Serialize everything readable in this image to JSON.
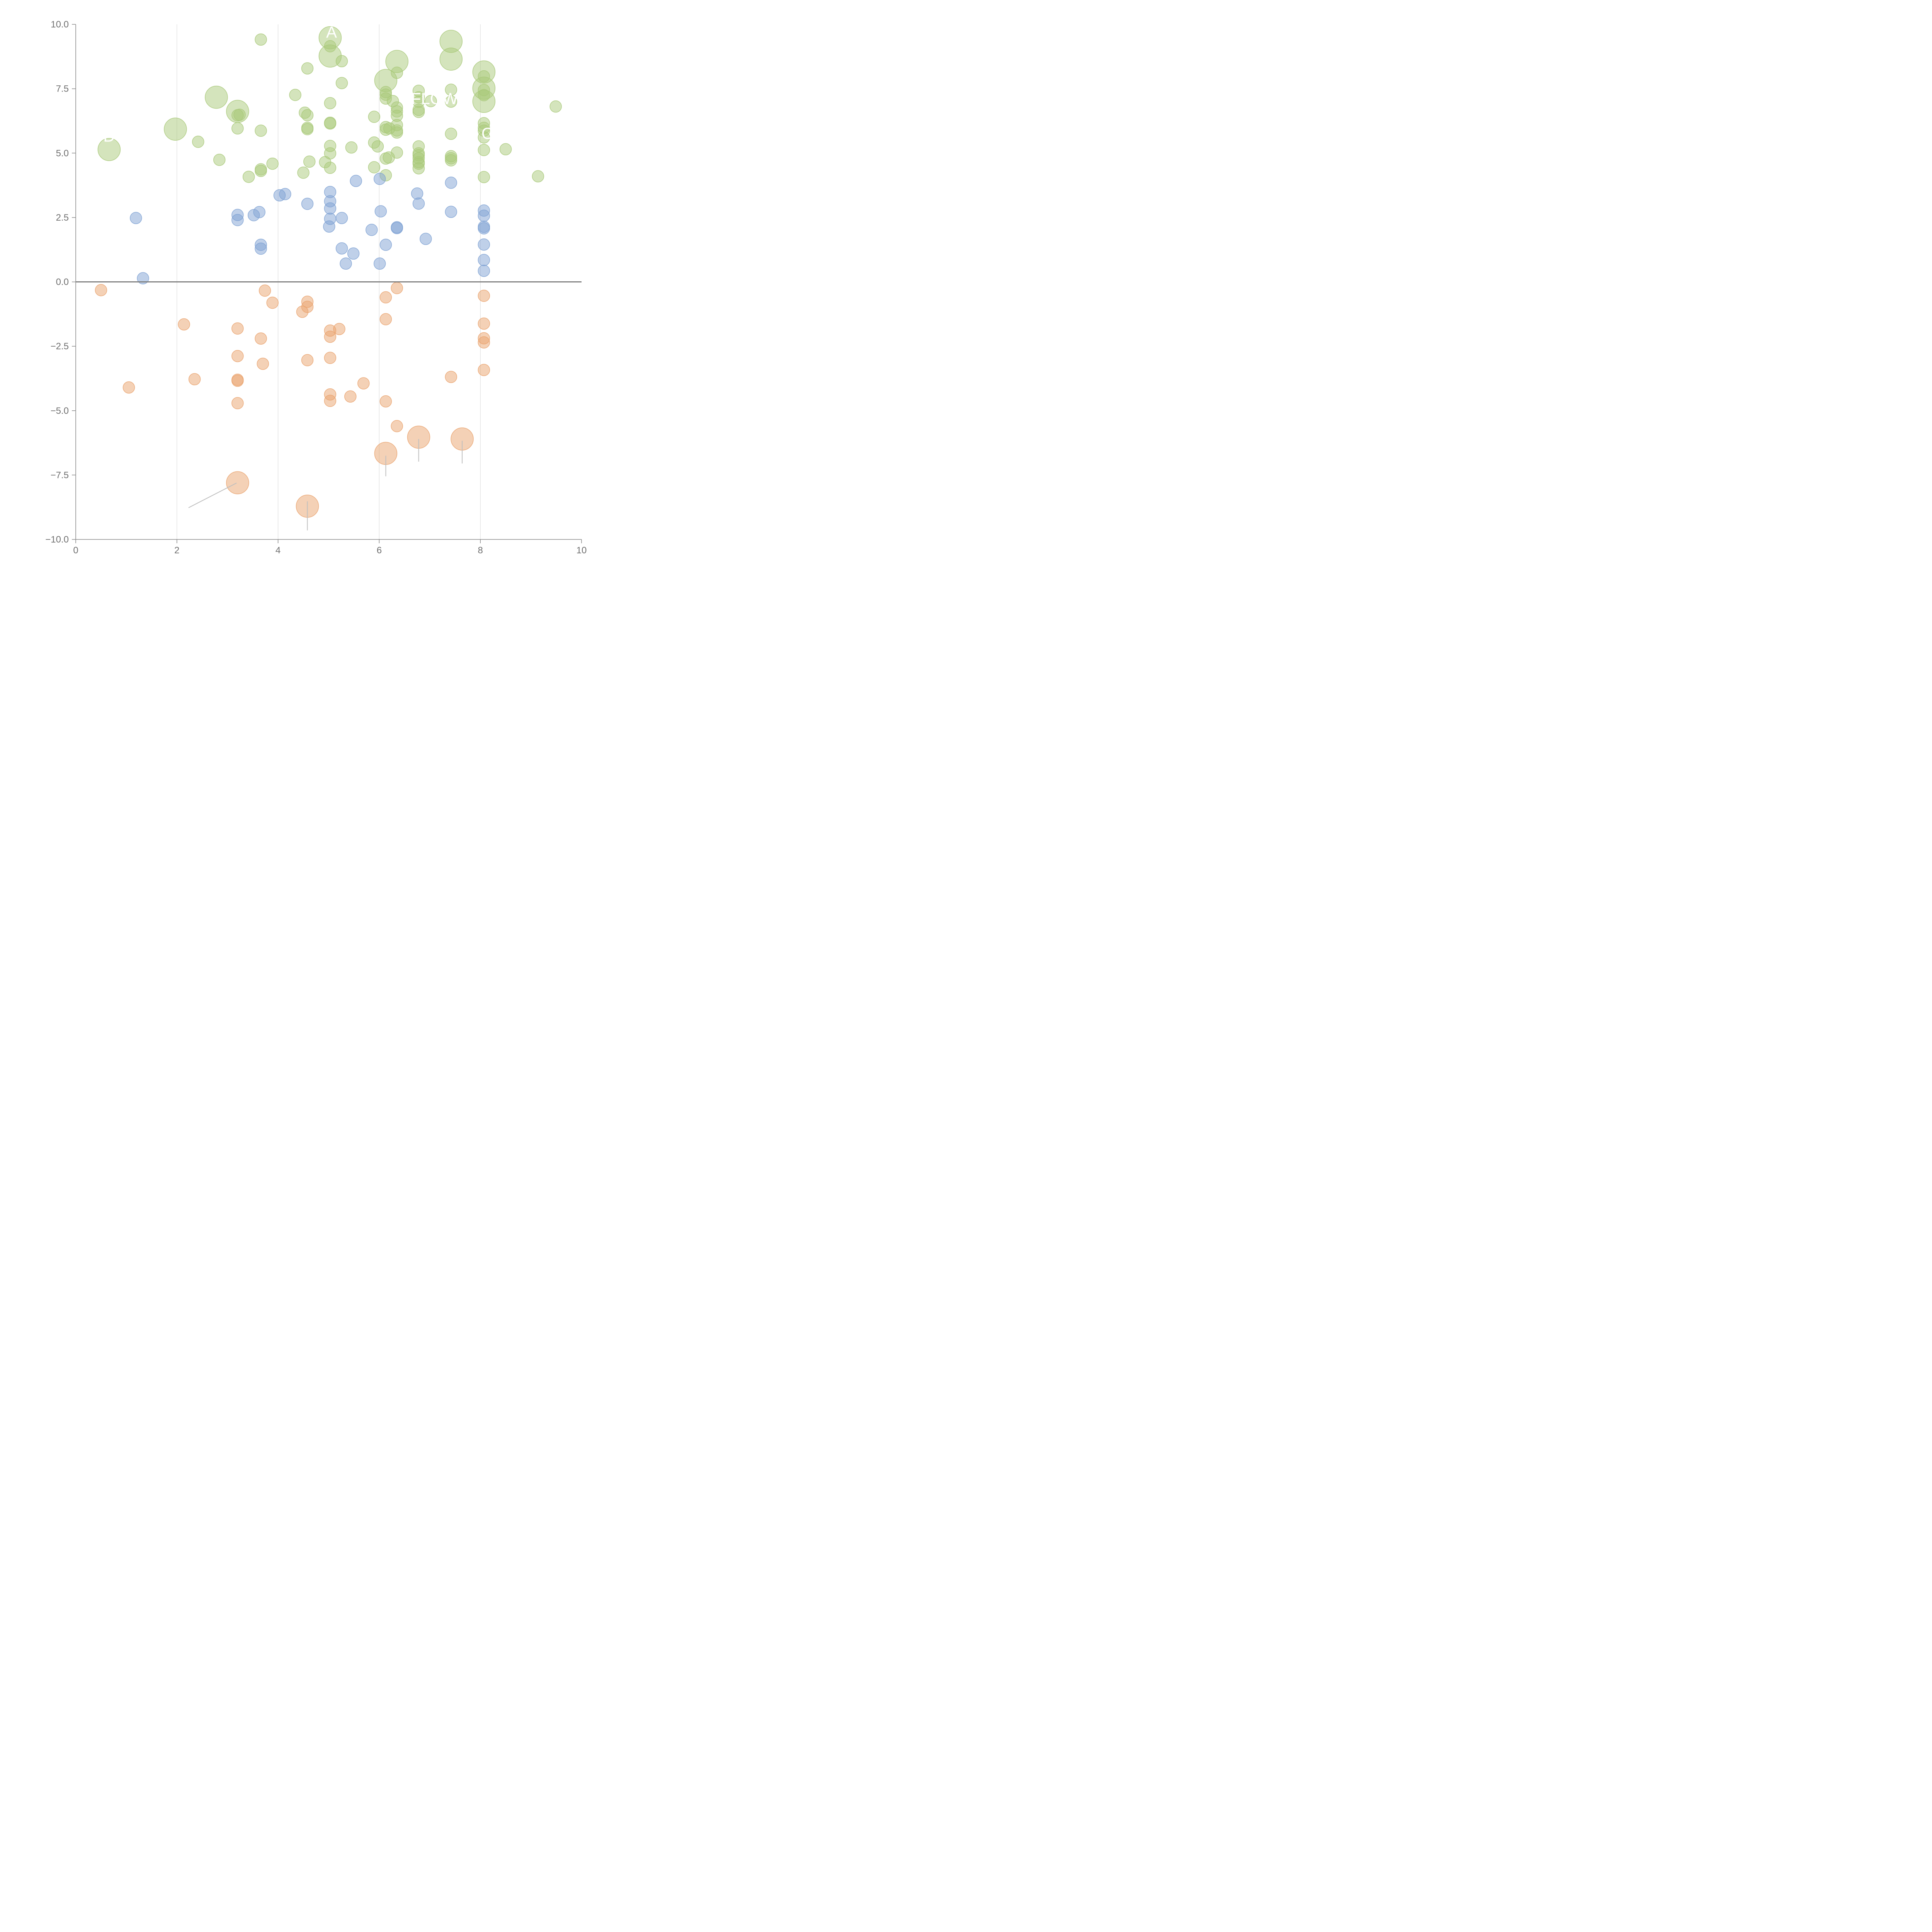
{
  "chart_data": {
    "type": "scatter",
    "title": "",
    "xlabel": "",
    "ylabel": "",
    "xlim": [
      0,
      10
    ],
    "ylim": [
      -10,
      10
    ],
    "x_ticks": [
      0,
      2,
      4,
      6,
      8,
      10
    ],
    "x_tick_labels": [
      "0",
      "2",
      "4",
      "6",
      "8",
      "10"
    ],
    "y_ticks": [
      -10,
      -7.5,
      -5,
      -2.5,
      0,
      2.5,
      5,
      7.5,
      10
    ],
    "y_tick_labels": [
      "−10.0",
      "−7.5",
      "−5.0",
      "−2.5",
      "0.0",
      "2.5",
      "5.0",
      "7.5",
      "10.0"
    ],
    "vertical_gridlines_at": [
      2,
      4,
      6,
      8
    ],
    "zero_line": 0,
    "colors": {
      "green": "#a9c97a",
      "blue": "#7fa2d3",
      "orange": "#eaa36e",
      "grid": "#dddddd",
      "axis": "#888888",
      "zero": "#808080",
      "leader": "#bfbfbf"
    },
    "series": [
      {
        "name": "green",
        "color": "#a9c97a",
        "points": [
          [
            3.66,
            9.41,
            1
          ],
          [
            5.03,
            9.48,
            2
          ],
          [
            5.03,
            9.15,
            1
          ],
          [
            5.03,
            8.77,
            2
          ],
          [
            5.26,
            8.57,
            1
          ],
          [
            4.58,
            8.29,
            1
          ],
          [
            7.42,
            9.34,
            2
          ],
          [
            7.42,
            8.65,
            2
          ],
          [
            6.35,
            8.56,
            2
          ],
          [
            6.35,
            8.12,
            1
          ],
          [
            6.13,
            7.82,
            2
          ],
          [
            8.07,
            8.15,
            2
          ],
          [
            8.07,
            7.98,
            1
          ],
          [
            8.07,
            7.52,
            2
          ],
          [
            8.07,
            7.01,
            2
          ],
          [
            8.07,
            7.25,
            1
          ],
          [
            8.07,
            7.45,
            1
          ],
          [
            5.26,
            7.72,
            1
          ],
          [
            4.34,
            7.26,
            1
          ],
          [
            2.78,
            7.17,
            2
          ],
          [
            3.2,
            6.62,
            2
          ],
          [
            3.2,
            6.47,
            1
          ],
          [
            3.24,
            6.49,
            1
          ],
          [
            1.97,
            5.93,
            2
          ],
          [
            0.66,
            5.14,
            2
          ],
          [
            2.42,
            5.44,
            1
          ],
          [
            2.84,
            4.74,
            1
          ],
          [
            3.2,
            5.96,
            1
          ],
          [
            3.66,
            5.87,
            1
          ],
          [
            3.89,
            4.59,
            1
          ],
          [
            3.66,
            4.37,
            1
          ],
          [
            3.66,
            4.31,
            1
          ],
          [
            3.42,
            4.08,
            1
          ],
          [
            4.58,
            6.47,
            1
          ],
          [
            4.53,
            6.57,
            1
          ],
          [
            4.58,
            5.98,
            1
          ],
          [
            4.58,
            5.93,
            1
          ],
          [
            4.62,
            4.67,
            1
          ],
          [
            4.5,
            4.24,
            1
          ],
          [
            4.93,
            4.65,
            1
          ],
          [
            5.03,
            6.94,
            1
          ],
          [
            5.03,
            6.18,
            1
          ],
          [
            5.03,
            6.15,
            1
          ],
          [
            5.03,
            5.28,
            1
          ],
          [
            5.03,
            4.99,
            1
          ],
          [
            5.03,
            4.43,
            1
          ],
          [
            5.45,
            5.22,
            1
          ],
          [
            5.9,
            6.41,
            1
          ],
          [
            5.9,
            5.41,
            1
          ],
          [
            5.97,
            5.26,
            1
          ],
          [
            5.9,
            4.45,
            1
          ],
          [
            6.13,
            7.37,
            1
          ],
          [
            6.13,
            7.27,
            1
          ],
          [
            6.13,
            7.12,
            1
          ],
          [
            6.27,
            7.02,
            1
          ],
          [
            6.13,
            6.01,
            1
          ],
          [
            6.13,
            5.91,
            1
          ],
          [
            6.2,
            5.96,
            1
          ],
          [
            6.13,
            4.79,
            1
          ],
          [
            6.19,
            4.83,
            1
          ],
          [
            6.13,
            4.14,
            1
          ],
          [
            6.35,
            6.77,
            1
          ],
          [
            6.35,
            6.62,
            1
          ],
          [
            6.35,
            6.45,
            1
          ],
          [
            6.35,
            6.09,
            1
          ],
          [
            6.35,
            5.88,
            1
          ],
          [
            6.35,
            5.8,
            1
          ],
          [
            6.35,
            5.02,
            1
          ],
          [
            6.78,
            7.42,
            1
          ],
          [
            6.78,
            7.17,
            1
          ],
          [
            6.78,
            6.99,
            1
          ],
          [
            6.78,
            6.68,
            1
          ],
          [
            6.78,
            6.6,
            1
          ],
          [
            6.78,
            5.26,
            1
          ],
          [
            6.78,
            4.99,
            1
          ],
          [
            6.78,
            4.92,
            1
          ],
          [
            6.78,
            4.8,
            1
          ],
          [
            6.78,
            4.65,
            1
          ],
          [
            6.78,
            4.59,
            1
          ],
          [
            6.78,
            4.41,
            1
          ],
          [
            7.02,
            7.02,
            1
          ],
          [
            7.42,
            7.46,
            1
          ],
          [
            7.42,
            7.0,
            1
          ],
          [
            7.42,
            5.75,
            1
          ],
          [
            7.42,
            4.88,
            1
          ],
          [
            7.42,
            4.8,
            1
          ],
          [
            7.42,
            4.72,
            1
          ],
          [
            8.07,
            6.16,
            1
          ],
          [
            8.07,
            5.98,
            1
          ],
          [
            8.07,
            5.87,
            1
          ],
          [
            8.07,
            5.61,
            1
          ],
          [
            8.07,
            5.12,
            1
          ],
          [
            8.07,
            4.07,
            1
          ],
          [
            8.5,
            5.15,
            1
          ],
          [
            9.14,
            4.1,
            1
          ],
          [
            9.49,
            6.81,
            1
          ]
        ]
      },
      {
        "name": "blue",
        "color": "#7fa2d3",
        "points": [
          [
            1.19,
            2.48,
            1
          ],
          [
            1.33,
            0.14,
            1
          ],
          [
            3.2,
            2.6,
            1
          ],
          [
            3.2,
            2.4,
            1
          ],
          [
            3.52,
            2.59,
            1
          ],
          [
            3.63,
            2.71,
            1
          ],
          [
            3.66,
            1.44,
            1
          ],
          [
            3.66,
            1.29,
            1
          ],
          [
            4.03,
            3.36,
            1
          ],
          [
            4.14,
            3.41,
            1
          ],
          [
            4.58,
            3.03,
            1
          ],
          [
            5.03,
            3.49,
            1
          ],
          [
            5.03,
            3.13,
            1
          ],
          [
            5.03,
            2.85,
            1
          ],
          [
            5.03,
            2.45,
            1
          ],
          [
            5.01,
            2.15,
            1
          ],
          [
            5.26,
            2.48,
            1
          ],
          [
            5.26,
            1.3,
            1
          ],
          [
            5.34,
            0.71,
            1
          ],
          [
            5.49,
            1.1,
            1
          ],
          [
            5.54,
            3.92,
            1
          ],
          [
            5.85,
            2.02,
            1
          ],
          [
            6.01,
            4.0,
            1
          ],
          [
            6.03,
            2.74,
            1
          ],
          [
            6.01,
            0.71,
            1
          ],
          [
            6.13,
            1.44,
            1
          ],
          [
            6.35,
            2.12,
            1
          ],
          [
            6.35,
            2.09,
            1
          ],
          [
            6.75,
            3.43,
            1
          ],
          [
            6.78,
            3.04,
            1
          ],
          [
            6.92,
            1.67,
            1
          ],
          [
            7.42,
            3.85,
            1
          ],
          [
            7.42,
            2.72,
            1
          ],
          [
            8.07,
            2.77,
            1
          ],
          [
            8.07,
            2.57,
            1
          ],
          [
            8.07,
            2.14,
            1
          ],
          [
            8.07,
            2.08,
            1
          ],
          [
            8.07,
            1.45,
            1
          ],
          [
            8.07,
            0.85,
            1
          ],
          [
            8.07,
            0.43,
            1
          ]
        ]
      },
      {
        "name": "orange",
        "color": "#eaa36e",
        "points": [
          [
            0.5,
            -0.32,
            1
          ],
          [
            1.05,
            -4.1,
            1
          ],
          [
            2.14,
            -1.65,
            1
          ],
          [
            2.35,
            -3.78,
            1
          ],
          [
            3.2,
            -1.81,
            1
          ],
          [
            3.2,
            -2.88,
            1
          ],
          [
            3.2,
            -3.8,
            1
          ],
          [
            3.2,
            -3.84,
            1
          ],
          [
            3.2,
            -4.71,
            1
          ],
          [
            3.2,
            -7.8,
            2
          ],
          [
            3.66,
            -2.2,
            1
          ],
          [
            3.7,
            -3.18,
            1
          ],
          [
            3.74,
            -0.34,
            1
          ],
          [
            3.89,
            -0.81,
            1
          ],
          [
            4.48,
            -1.16,
            1
          ],
          [
            4.58,
            -0.77,
            1
          ],
          [
            4.58,
            -0.97,
            1
          ],
          [
            4.58,
            -3.04,
            1
          ],
          [
            4.58,
            -8.71,
            2
          ],
          [
            5.03,
            -1.89,
            1
          ],
          [
            5.03,
            -2.13,
            1
          ],
          [
            5.03,
            -2.95,
            1
          ],
          [
            5.03,
            -4.37,
            1
          ],
          [
            5.03,
            -4.62,
            1
          ],
          [
            5.21,
            -1.83,
            1
          ],
          [
            5.43,
            -4.45,
            1
          ],
          [
            5.69,
            -3.94,
            1
          ],
          [
            6.13,
            -0.6,
            1
          ],
          [
            6.13,
            -1.45,
            1
          ],
          [
            6.13,
            -4.64,
            1
          ],
          [
            6.13,
            -6.66,
            2
          ],
          [
            6.35,
            -0.24,
            1
          ],
          [
            6.35,
            -5.6,
            1
          ],
          [
            6.78,
            -6.03,
            2
          ],
          [
            7.42,
            -3.69,
            1
          ],
          [
            7.64,
            -6.1,
            2
          ],
          [
            8.07,
            -0.54,
            1
          ],
          [
            8.07,
            -1.62,
            1
          ],
          [
            8.07,
            -2.19,
            1
          ],
          [
            8.07,
            -2.35,
            1
          ],
          [
            8.07,
            -3.42,
            1
          ]
        ]
      }
    ],
    "labels": [
      {
        "text": "A",
        "x": 4.95,
        "y": 9.48,
        "anchor": "start"
      },
      {
        "text": "D",
        "x": 0.66,
        "y": 5.45,
        "anchor": "middle"
      },
      {
        "text": "FLOW",
        "x": 6.63,
        "y": 6.9,
        "anchor": "start"
      },
      {
        "text": "C",
        "x": 8.02,
        "y": 5.55,
        "anchor": "start"
      }
    ],
    "leader_lines": [
      {
        "from": [
          3.18,
          -7.81
        ],
        "to": [
          2.23,
          -8.77
        ],
        "color": "#bfbfbf"
      },
      {
        "from": [
          4.58,
          -8.52
        ],
        "to": [
          4.58,
          -9.65
        ],
        "color": "#bfbfbf"
      },
      {
        "from": [
          6.13,
          -6.75
        ],
        "to": [
          6.13,
          -7.55
        ],
        "color": "#bfbfbf"
      },
      {
        "from": [
          6.78,
          -6.1
        ],
        "to": [
          6.78,
          -6.98
        ],
        "color": "#bfbfbf"
      },
      {
        "from": [
          7.64,
          -6.17
        ],
        "to": [
          7.64,
          -7.05
        ],
        "color": "#bfbfbf"
      }
    ]
  }
}
